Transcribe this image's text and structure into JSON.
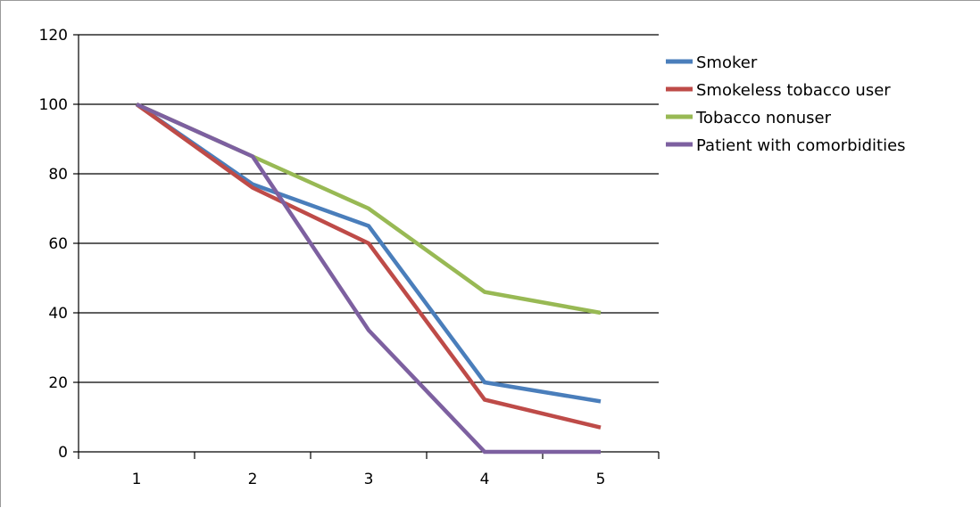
{
  "chart_data": {
    "type": "line",
    "x": [
      "1",
      "2",
      "3",
      "4",
      "5"
    ],
    "ylim": [
      0,
      120
    ],
    "yticks": [
      0,
      20,
      40,
      60,
      80,
      100,
      120
    ],
    "grid": true,
    "legend_position": "right",
    "series": [
      {
        "name": "Smoker",
        "color": "#4a7ebb",
        "values": [
          100,
          77,
          65,
          20,
          14.5
        ]
      },
      {
        "name": "Smokeless tobacco user",
        "color": "#be4b48",
        "values": [
          100,
          76,
          60,
          15,
          7
        ]
      },
      {
        "name": "Tobacco nonuser",
        "color": "#98b954",
        "values": [
          100,
          85,
          70,
          46,
          40
        ]
      },
      {
        "name": "Patient with comorbidities",
        "color": "#7d60a0",
        "values": [
          100,
          85,
          35,
          0,
          0
        ]
      }
    ]
  }
}
